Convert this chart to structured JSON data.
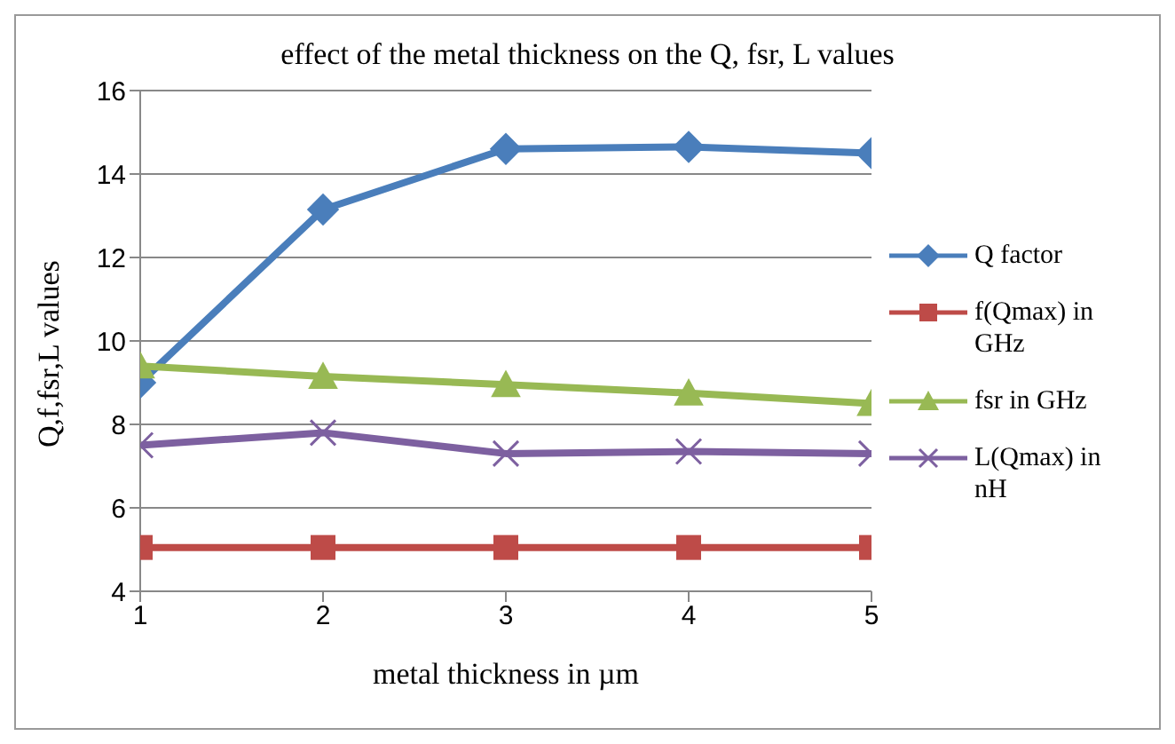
{
  "chart_data": {
    "type": "line",
    "title": "effect of the metal thickness on the Q, fsr, L values",
    "xlabel": "metal thickness in µm",
    "ylabel": "Q,f,fsr,L values",
    "x": [
      1,
      2,
      3,
      4,
      5
    ],
    "xlim": [
      1,
      5
    ],
    "xticks": [
      1,
      2,
      3,
      4,
      5
    ],
    "ylim": [
      4,
      16
    ],
    "yticks": [
      4,
      6,
      8,
      10,
      12,
      14,
      16
    ],
    "grid": "y",
    "legend": "right",
    "series": [
      {
        "name": "Q factor",
        "color": "#4a7ebb",
        "marker": "diamond",
        "values": [
          9.0,
          13.15,
          14.6,
          14.65,
          14.5
        ]
      },
      {
        "name": "f(Qmax) in GHz",
        "color": "#be4b48",
        "marker": "square",
        "values": [
          5.05,
          5.05,
          5.05,
          5.05,
          5.05
        ]
      },
      {
        "name": "fsr in GHz",
        "color": "#98b954",
        "marker": "triangle",
        "values": [
          9.4,
          9.15,
          8.95,
          8.75,
          8.5
        ]
      },
      {
        "name": "L(Qmax) in nH",
        "color": "#7d60a0",
        "marker": "cross",
        "values": [
          7.5,
          7.8,
          7.3,
          7.35,
          7.3
        ]
      }
    ]
  }
}
